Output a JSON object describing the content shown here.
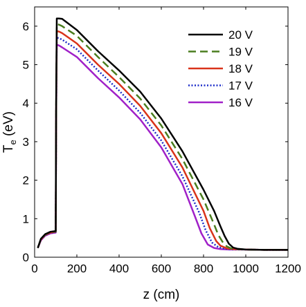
{
  "chart_data": {
    "type": "line",
    "xlabel": "z (cm)",
    "ylabel_main": "T",
    "ylabel_sub": "e",
    "ylabel_unit": " (eV)",
    "xlim": [
      0,
      1200
    ],
    "ylim": [
      0,
      6.5
    ],
    "x_ticks": [
      0,
      200,
      400,
      600,
      800,
      1000,
      1200
    ],
    "y_ticks": [
      0,
      1,
      2,
      3,
      4,
      5,
      6
    ],
    "grid": false,
    "legend_position": "top-right",
    "series": [
      {
        "name": "20 V",
        "color": "#000000",
        "dash": "solid",
        "x": [
          15,
          30,
          50,
          75,
          100,
          102,
          105,
          115,
          130,
          200,
          300,
          400,
          500,
          600,
          700,
          800,
          850,
          880,
          900,
          920,
          940,
          960,
          1000,
          1100,
          1200
        ],
        "y": [
          0.24,
          0.48,
          0.6,
          0.66,
          0.68,
          4.0,
          6.2,
          6.2,
          6.19,
          5.9,
          5.35,
          4.85,
          4.3,
          3.6,
          2.75,
          1.75,
          1.2,
          0.8,
          0.55,
          0.35,
          0.25,
          0.22,
          0.2,
          0.19,
          0.19
        ]
      },
      {
        "name": "19 V",
        "color": "#4a7d1e",
        "dash": "long-dash",
        "x": [
          15,
          30,
          50,
          75,
          100,
          102,
          105,
          115,
          130,
          200,
          300,
          400,
          500,
          600,
          700,
          800,
          850,
          870,
          890,
          910,
          930,
          960,
          1000,
          1100,
          1200
        ],
        "y": [
          0.24,
          0.47,
          0.59,
          0.65,
          0.67,
          3.9,
          6.05,
          6.04,
          6.0,
          5.75,
          5.2,
          4.68,
          4.12,
          3.42,
          2.55,
          1.5,
          0.85,
          0.58,
          0.4,
          0.28,
          0.23,
          0.21,
          0.2,
          0.19,
          0.19
        ]
      },
      {
        "name": "18 V",
        "color": "#d9331a",
        "dash": "solid",
        "x": [
          15,
          30,
          50,
          75,
          100,
          102,
          105,
          115,
          130,
          200,
          300,
          400,
          500,
          600,
          700,
          800,
          830,
          860,
          880,
          910,
          940,
          1000,
          1100,
          1200
        ],
        "y": [
          0.24,
          0.46,
          0.58,
          0.64,
          0.66,
          3.8,
          5.87,
          5.86,
          5.82,
          5.55,
          5.0,
          4.5,
          3.93,
          3.22,
          2.33,
          1.2,
          0.75,
          0.42,
          0.3,
          0.23,
          0.21,
          0.2,
          0.19,
          0.19
        ]
      },
      {
        "name": "17 V",
        "color": "#1a2bc9",
        "dash": "dotted",
        "x": [
          15,
          30,
          50,
          75,
          100,
          102,
          105,
          115,
          130,
          200,
          300,
          400,
          500,
          600,
          700,
          780,
          810,
          840,
          870,
          900,
          940,
          1000,
          1100,
          1200
        ],
        "y": [
          0.24,
          0.45,
          0.57,
          0.63,
          0.65,
          3.7,
          5.7,
          5.69,
          5.65,
          5.4,
          4.85,
          4.33,
          3.75,
          3.03,
          2.1,
          1.15,
          0.7,
          0.38,
          0.26,
          0.22,
          0.2,
          0.2,
          0.19,
          0.19
        ]
      },
      {
        "name": "16 V",
        "color": "#a020c8",
        "dash": "solid",
        "x": [
          15,
          30,
          50,
          75,
          100,
          102,
          105,
          115,
          130,
          200,
          300,
          400,
          500,
          600,
          700,
          760,
          790,
          820,
          850,
          880,
          920,
          1000,
          1100,
          1200
        ],
        "y": [
          0.24,
          0.44,
          0.56,
          0.62,
          0.64,
          3.6,
          5.52,
          5.5,
          5.45,
          5.2,
          4.65,
          4.15,
          3.58,
          2.85,
          1.9,
          1.05,
          0.62,
          0.33,
          0.24,
          0.21,
          0.2,
          0.2,
          0.19,
          0.19
        ]
      }
    ]
  }
}
